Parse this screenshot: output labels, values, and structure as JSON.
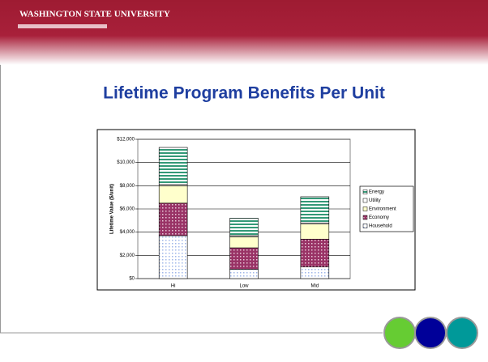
{
  "header": {
    "logo": "WASHINGTON STATE UNIVERSITY"
  },
  "chart_data": {
    "type": "stacked_bar",
    "title": "Lifetime Program Benefits Per Unit",
    "y_label": "Lifetime Value ($/unit)",
    "categories": [
      "Hi",
      "Low",
      "Mid"
    ],
    "series": [
      {
        "name": "Household",
        "color": "#9fb6e8",
        "values": [
          3700,
          800,
          1000
        ]
      },
      {
        "name": "Economy",
        "color": "#993366",
        "values": [
          2800,
          1850,
          2400
        ]
      },
      {
        "name": "Environment",
        "color": "#ffffcc",
        "values": [
          1500,
          950,
          1300
        ]
      },
      {
        "name": "Utility",
        "color": "#ffffff",
        "values": [
          100,
          100,
          100
        ]
      },
      {
        "name": "Energy",
        "color": "#339977",
        "values": [
          3200,
          1500,
          2250
        ]
      }
    ],
    "ylim": [
      0,
      12000
    ],
    "yticks": [
      {
        "value": 0,
        "label": "$0"
      },
      {
        "value": 2000,
        "label": "$2,000"
      },
      {
        "value": 4000,
        "label": "$4,000"
      },
      {
        "value": 6000,
        "label": "$6,000"
      },
      {
        "value": 8000,
        "label": "$8,000"
      },
      {
        "value": 10000,
        "label": "$10,000"
      },
      {
        "value": 12000,
        "label": "$12,000"
      }
    ],
    "grid": true
  }
}
